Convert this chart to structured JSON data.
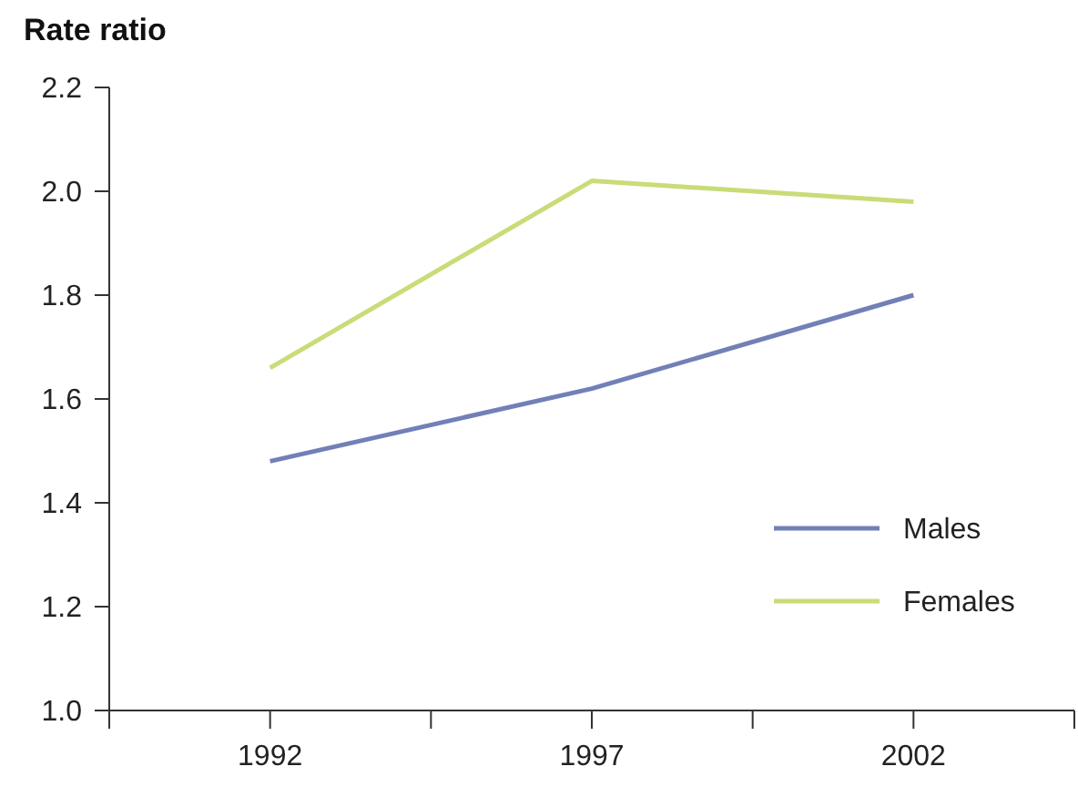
{
  "chart_data": {
    "type": "line",
    "ylabel": "Rate ratio",
    "x": [
      1992,
      1997,
      2002
    ],
    "series": [
      {
        "name": "Males",
        "color": "#7280b8",
        "values": [
          1.48,
          1.62,
          1.8
        ]
      },
      {
        "name": "Females",
        "color": "#c8dc78",
        "values": [
          1.66,
          2.02,
          1.98
        ]
      }
    ],
    "xlim": [
      1989.5,
      2004.5
    ],
    "xticks": [
      {
        "value": 1989.5,
        "label": null
      },
      1992,
      {
        "value": 1994.5,
        "label": null
      },
      1997,
      {
        "value": 1999.5,
        "label": null
      },
      2002,
      {
        "value": 2004.5,
        "label": null
      }
    ],
    "ylim": [
      1.0,
      2.2
    ],
    "yticks": [
      {
        "value": 1.0,
        "label": "1.0"
      },
      1.2,
      1.4,
      1.6,
      1.8,
      {
        "value": 2.0,
        "label": "2.0"
      },
      2.2
    ],
    "grid": false,
    "legend": "bottom right",
    "marker": "none",
    "line_style": "solid"
  }
}
